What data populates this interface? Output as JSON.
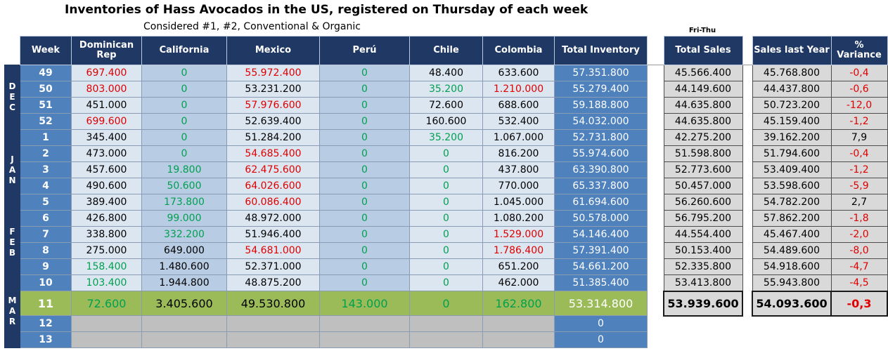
{
  "title": "Inventories of Hass Avocados in the US, registered on Thursday of each week",
  "subtitle": "Considered #1, #2, Conventional & Organic",
  "sales_period_label": "Fri-Thu",
  "headers": [
    "Week",
    "Dominican Rep",
    "California",
    "Mexico",
    "Perú",
    "Chile",
    "Colombia",
    "Total Inventory"
  ],
  "sales_header": "Total Sales",
  "lastyear_headers": [
    "Sales last Year",
    "% Variance"
  ],
  "months": {
    "dec": [
      "D",
      "E",
      "C"
    ],
    "jan": [
      "J",
      "A",
      "N"
    ],
    "feb": [
      "F",
      "E",
      "B"
    ],
    "mar": [
      "M",
      "A",
      "R"
    ]
  },
  "colors": {
    "green": "#00a050",
    "red": "#e00000",
    "header": "#1f3864",
    "week": "#4f81bd",
    "highlight": "#9bbb59"
  },
  "rows": [
    {
      "week": "49",
      "dom": "697.400",
      "cal": "0",
      "mex": "55.972.400",
      "per": "0",
      "chi": "48.400",
      "col": "633.600",
      "total": "57.351.800",
      "sales": "45.566.400",
      "last": "45.768.800",
      "var": "-0,4"
    },
    {
      "week": "50",
      "dom": "803.000",
      "cal": "0",
      "mex": "53.231.200",
      "per": "0",
      "chi": "35.200",
      "col": "1.210.000",
      "total": "55.279.400",
      "sales": "44.149.600",
      "last": "44.437.800",
      "var": "-0,6"
    },
    {
      "week": "51",
      "dom": "451.000",
      "cal": "0",
      "mex": "57.976.600",
      "per": "0",
      "chi": "72.600",
      "col": "688.600",
      "total": "59.188.800",
      "sales": "44.635.800",
      "last": "50.723.200",
      "var": "-12,0"
    },
    {
      "week": "52",
      "dom": "699.600",
      "cal": "0",
      "mex": "52.639.400",
      "per": "0",
      "chi": "160.600",
      "col": "532.400",
      "total": "54.032.000",
      "sales": "44.635.800",
      "last": "45.159.400",
      "var": "-1,2"
    },
    {
      "week": "1",
      "dom": "345.400",
      "cal": "0",
      "mex": "51.284.200",
      "per": "0",
      "chi": "35.200",
      "col": "1.067.000",
      "total": "52.731.800",
      "sales": "42.275.200",
      "last": "39.162.200",
      "var": "7,9"
    },
    {
      "week": "2",
      "dom": "473.000",
      "cal": "0",
      "mex": "54.685.400",
      "per": "0",
      "chi": "0",
      "col": "816.200",
      "total": "55.974.600",
      "sales": "51.598.800",
      "last": "51.794.600",
      "var": "-0,4"
    },
    {
      "week": "3",
      "dom": "457.600",
      "cal": "19.800",
      "mex": "62.475.600",
      "per": "0",
      "chi": "0",
      "col": "437.800",
      "total": "63.390.800",
      "sales": "52.773.600",
      "last": "53.409.400",
      "var": "-1,2"
    },
    {
      "week": "4",
      "dom": "490.600",
      "cal": "50.600",
      "mex": "64.026.600",
      "per": "0",
      "chi": "0",
      "col": "770.000",
      "total": "65.337.800",
      "sales": "50.457.000",
      "last": "53.598.600",
      "var": "-5,9"
    },
    {
      "week": "5",
      "dom": "389.400",
      "cal": "173.800",
      "mex": "60.086.400",
      "per": "0",
      "chi": "0",
      "col": "1.045.000",
      "total": "61.694.600",
      "sales": "56.260.600",
      "last": "54.782.200",
      "var": "2,7"
    },
    {
      "week": "6",
      "dom": "426.800",
      "cal": "99.000",
      "mex": "48.972.000",
      "per": "0",
      "chi": "0",
      "col": "1.080.200",
      "total": "50.578.000",
      "sales": "56.795.200",
      "last": "57.862.200",
      "var": "-1,8"
    },
    {
      "week": "7",
      "dom": "338.800",
      "cal": "332.200",
      "mex": "51.946.400",
      "per": "0",
      "chi": "0",
      "col": "1.529.000",
      "total": "54.146.400",
      "sales": "44.554.400",
      "last": "45.467.400",
      "var": "-2,0"
    },
    {
      "week": "8",
      "dom": "275.000",
      "cal": "649.000",
      "mex": "54.681.000",
      "per": "0",
      "chi": "0",
      "col": "1.786.400",
      "total": "57.391.400",
      "sales": "50.153.400",
      "last": "54.489.600",
      "var": "-8,0"
    },
    {
      "week": "9",
      "dom": "158.400",
      "cal": "1.480.600",
      "mex": "52.371.000",
      "per": "0",
      "chi": "0",
      "col": "651.200",
      "total": "54.661.200",
      "sales": "52.335.800",
      "last": "54.918.600",
      "var": "-4,7"
    },
    {
      "week": "10",
      "dom": "103.400",
      "cal": "1.944.800",
      "mex": "48.875.200",
      "per": "0",
      "chi": "0",
      "col": "462.000",
      "total": "51.385.400",
      "sales": "53.413.800",
      "last": "55.943.800",
      "var": "-4,5"
    },
    {
      "week": "11",
      "dom": "72.600",
      "cal": "3.405.600",
      "mex": "49.530.800",
      "per": "143.000",
      "chi": "0",
      "col": "162.800",
      "total": "53.314.800",
      "sales": "53.939.600",
      "last": "54.093.600",
      "var": "-0,3"
    },
    {
      "week": "12",
      "total": "0"
    },
    {
      "week": "13",
      "total": "0"
    }
  ]
}
